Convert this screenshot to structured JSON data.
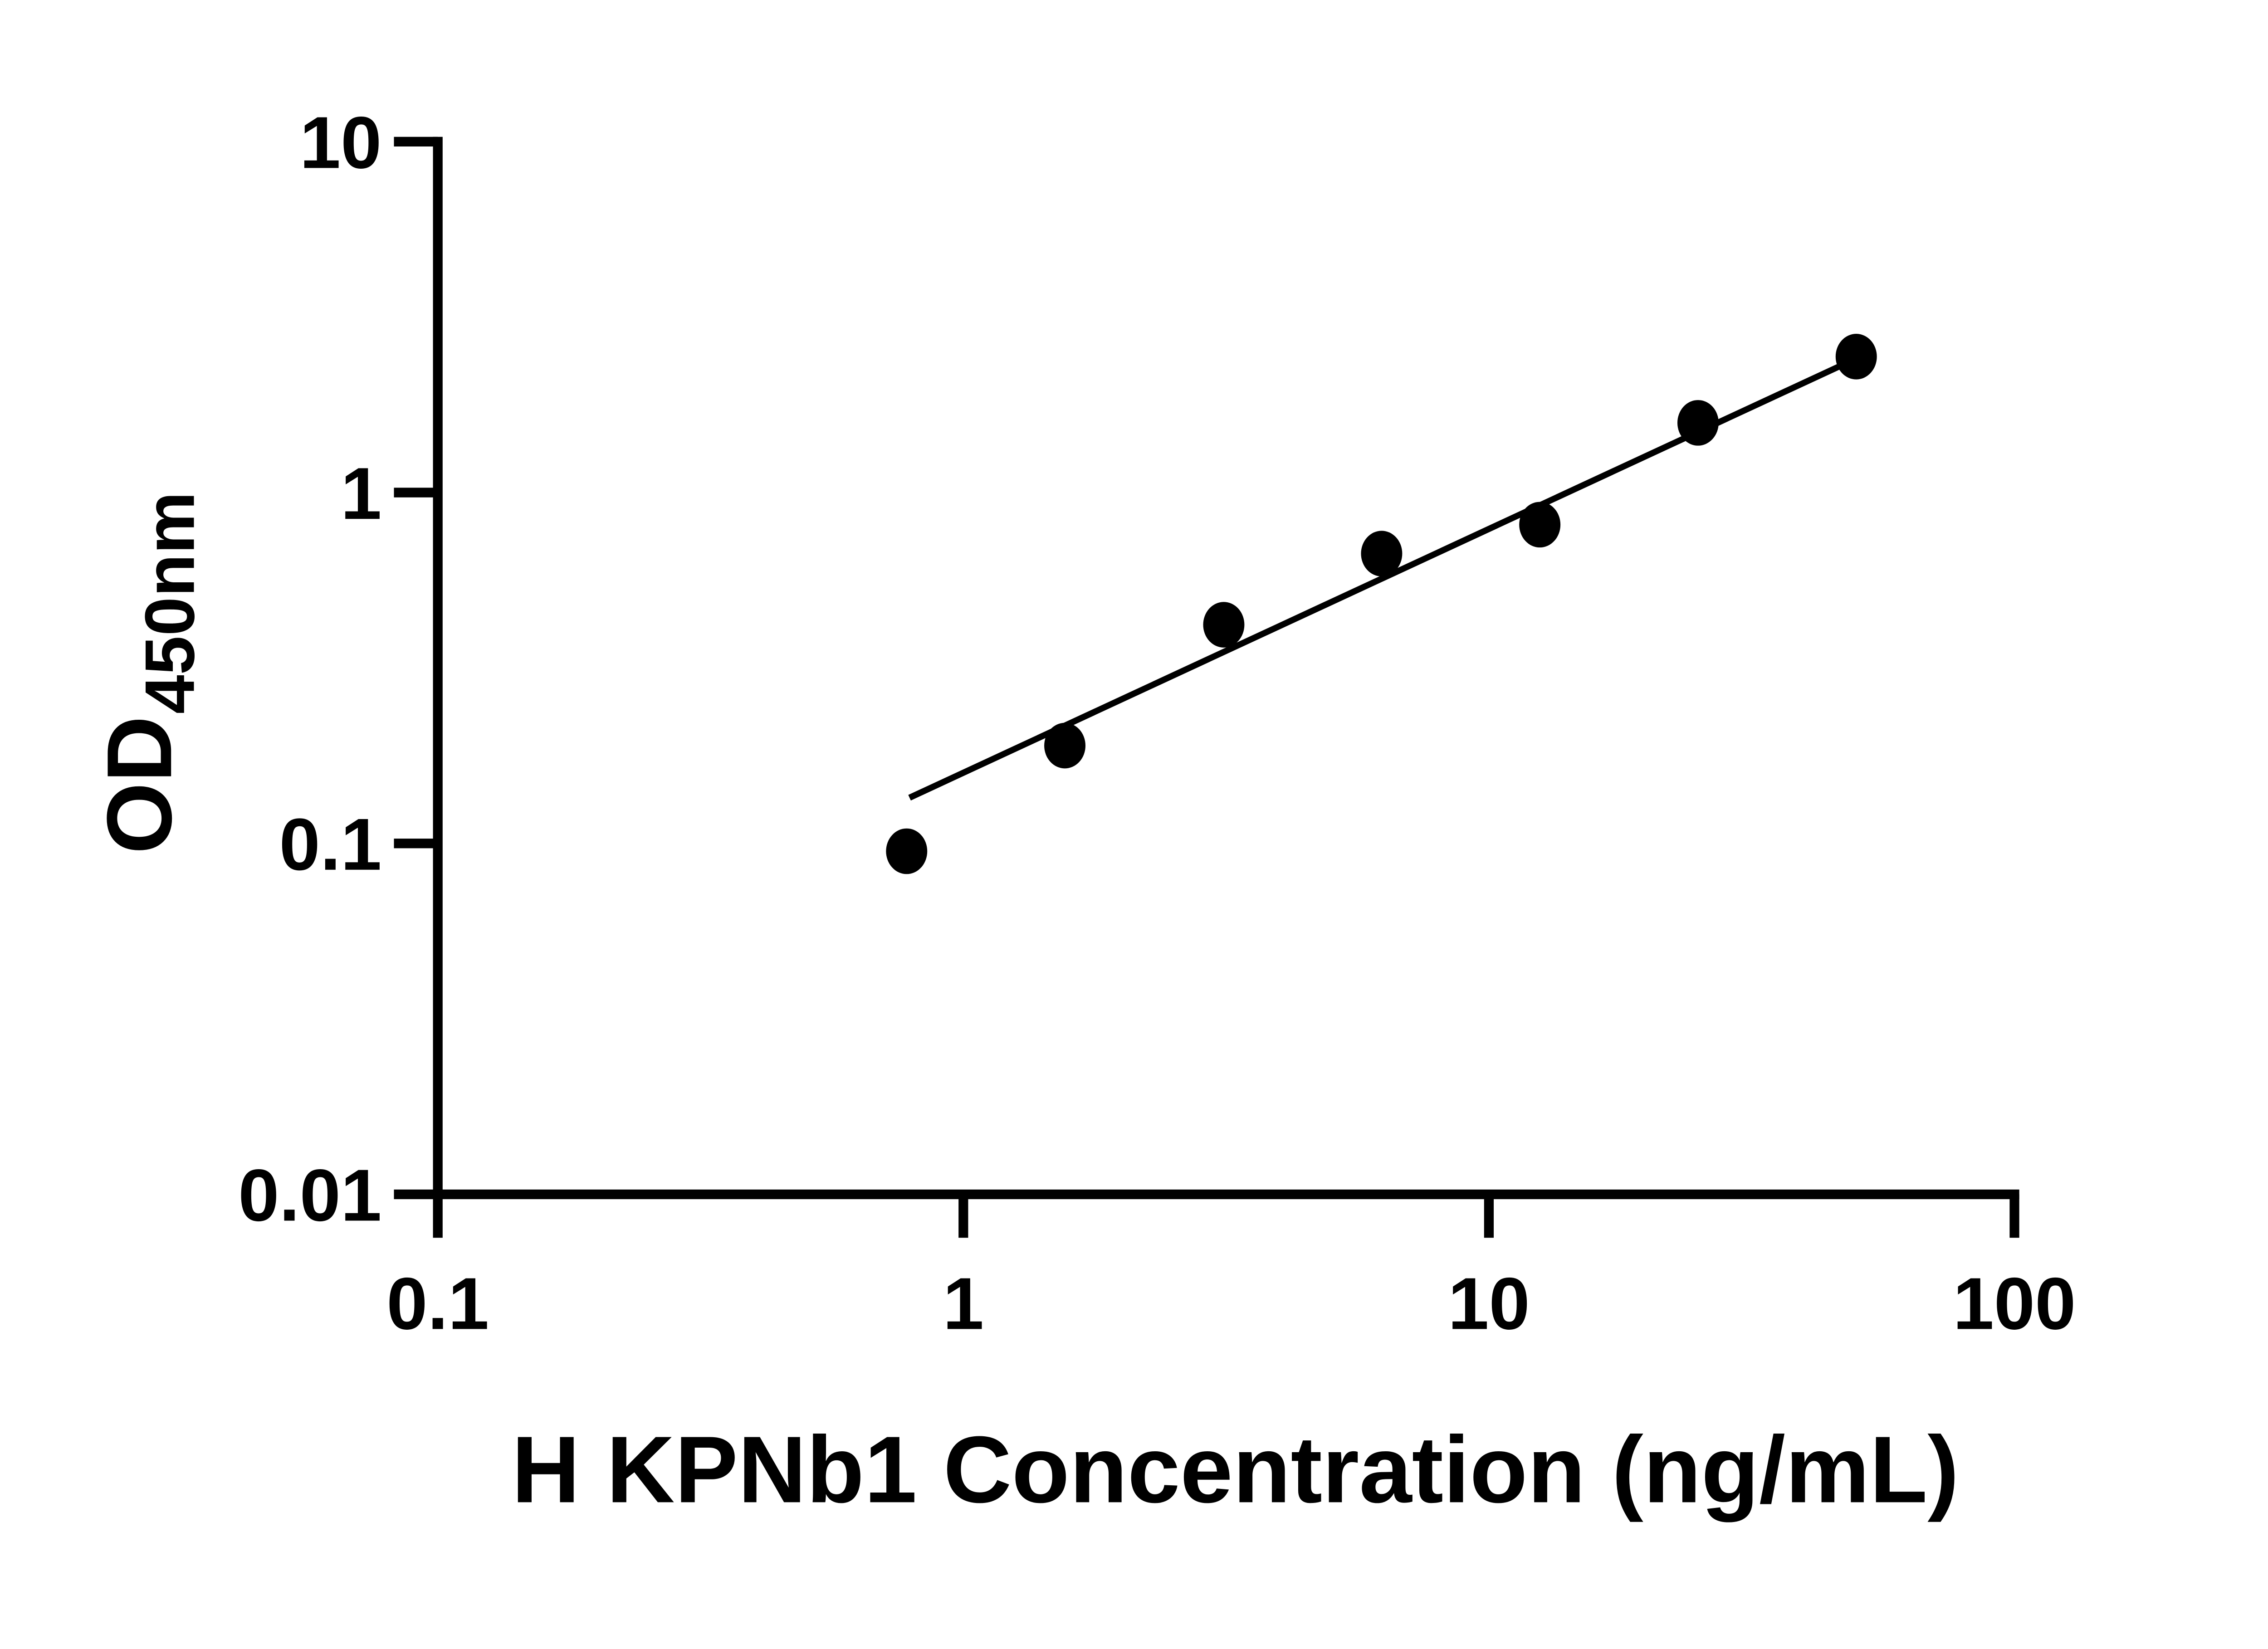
{
  "colors": {
    "background": "#ffffff",
    "foreground": "#000000",
    "axis_color": "#000000",
    "point_color": "#000000",
    "trend_line_color": "#000000",
    "text_color": "#000000"
  },
  "chart_data": {
    "type": "scatter",
    "title": "",
    "xlabel": "H KPNb1 Concentration (ng/mL)",
    "ylabel_main": "OD",
    "ylabel_sub": "450nm",
    "x_axis": {
      "scale": "log",
      "min": 0.1,
      "max": 100,
      "ticks": [
        0.1,
        1,
        10,
        100
      ],
      "tick_labels": [
        "0.1",
        "1",
        "10",
        "100"
      ]
    },
    "y_axis": {
      "scale": "log",
      "min": 0.01,
      "max": 10,
      "ticks": [
        0.01,
        0.1,
        1,
        10
      ],
      "tick_labels": [
        "0.01",
        "0.1",
        "1",
        "10"
      ]
    },
    "grid": false,
    "legend": false,
    "series": [
      {
        "name": "standard-curve-points",
        "marker": "filled-circle",
        "points": [
          {
            "x": 0.78,
            "y": 0.095
          },
          {
            "x": 1.56,
            "y": 0.19
          },
          {
            "x": 3.13,
            "y": 0.42
          },
          {
            "x": 6.25,
            "y": 0.67
          },
          {
            "x": 12.5,
            "y": 0.81
          },
          {
            "x": 25,
            "y": 1.58
          },
          {
            "x": 50,
            "y": 2.44
          }
        ]
      }
    ],
    "trend_line": {
      "x1": 0.79,
      "y1": 0.135,
      "x2": 50.9,
      "y2": 2.44
    }
  }
}
